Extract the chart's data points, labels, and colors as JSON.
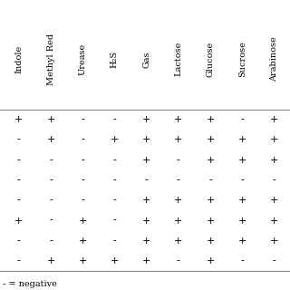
{
  "col_headers": [
    "Indole",
    "Methyl Red",
    "Urease",
    "H₂S",
    "Gas",
    "Lactose",
    "Glucose",
    "Sucrose",
    "Arabinose"
  ],
  "rows": [
    [
      "+",
      "+",
      "-",
      "-",
      "+",
      "+",
      "+",
      "-",
      "+"
    ],
    [
      "-",
      "+",
      "-",
      "+",
      "+",
      "+",
      "+",
      "+",
      "+"
    ],
    [
      "-",
      "-",
      "-",
      "-",
      "+",
      "-",
      "+",
      "+",
      "+"
    ],
    [
      "-",
      "-",
      "-",
      "-",
      "-",
      "-",
      "-",
      "-",
      "-"
    ],
    [
      "-",
      "-",
      "-",
      "-",
      "+",
      "+",
      "+",
      "+",
      "+"
    ],
    [
      "+",
      "-",
      "+",
      "-",
      "+",
      "+",
      "+",
      "+",
      "+"
    ],
    [
      "-",
      "-",
      "+",
      "-",
      "+",
      "+",
      "+",
      "+",
      "+"
    ],
    [
      "-",
      "+",
      "+",
      "+",
      "+",
      "-",
      "+",
      "-",
      "-"
    ]
  ],
  "footnote": "- = negative",
  "bg_color": "#ffffff",
  "text_color": "#000000",
  "header_fontsize": 7,
  "cell_fontsize": 8,
  "footnote_fontsize": 7
}
